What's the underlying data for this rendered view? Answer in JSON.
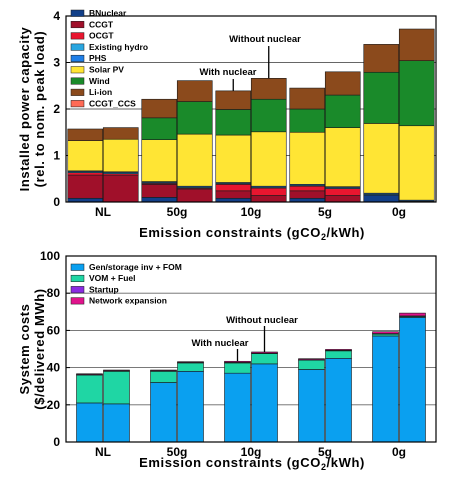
{
  "chart_data": [
    {
      "type": "bar",
      "stacked": true,
      "title": "",
      "xlabel": "Emission constraints (gCO2/kWh)",
      "xlabel_parts": [
        "Emission constraints (gCO",
        "2",
        "/kWh)"
      ],
      "ylabel_lines": [
        "Installed power capacity",
        "(rel. to nom. peak load)"
      ],
      "ylim": [
        0,
        4
      ],
      "yticks": [
        0,
        1,
        2,
        3,
        4
      ],
      "grid": "horizontal",
      "legend_position": "top-left",
      "categories": [
        "NL",
        "50g",
        "10g",
        "5g",
        "0g"
      ],
      "bar_variants": [
        "With nuclear",
        "Without nuclear"
      ],
      "annotations": [
        {
          "text": "With nuclear",
          "category": "10g",
          "variant": "With nuclear"
        },
        {
          "text": "Without nuclear",
          "category": "10g",
          "variant": "Without nuclear"
        }
      ],
      "series": [
        {
          "name": "BNuclear",
          "color": "#123f88",
          "values": [
            [
              0.08,
              0.0
            ],
            [
              0.1,
              0.0
            ],
            [
              0.08,
              0.0
            ],
            [
              0.08,
              0.0
            ],
            [
              0.15,
              0.0
            ]
          ]
        },
        {
          "name": "CCGT",
          "color": "#a0102a",
          "values": [
            [
              0.5,
              0.58
            ],
            [
              0.28,
              0.28
            ],
            [
              0.16,
              0.14
            ],
            [
              0.16,
              0.14
            ],
            [
              0.0,
              0.0
            ]
          ]
        },
        {
          "name": "OCGT",
          "color": "#e8162f",
          "values": [
            [
              0.05,
              0.03
            ],
            [
              0.02,
              0.02
            ],
            [
              0.14,
              0.16
            ],
            [
              0.1,
              0.15
            ],
            [
              0.0,
              0.0
            ]
          ]
        },
        {
          "name": "Existing hydro",
          "color": "#2aa6e0",
          "values": [
            [
              0.02,
              0.02
            ],
            [
              0.02,
              0.02
            ],
            [
              0.02,
              0.02
            ],
            [
              0.02,
              0.02
            ],
            [
              0.02,
              0.02
            ]
          ]
        },
        {
          "name": "PHS",
          "color": "#1f7fe8",
          "values": [
            [
              0.02,
              0.02
            ],
            [
              0.02,
              0.02
            ],
            [
              0.02,
              0.02
            ],
            [
              0.02,
              0.02
            ],
            [
              0.02,
              0.02
            ]
          ]
        },
        {
          "name": "Solar PV",
          "color": "#ffe534",
          "values": [
            [
              0.65,
              0.7
            ],
            [
              0.9,
              1.12
            ],
            [
              1.02,
              1.17
            ],
            [
              1.12,
              1.27
            ],
            [
              1.5,
              1.6
            ]
          ]
        },
        {
          "name": "Wind",
          "color": "#1a8a2a",
          "values": [
            [
              0.0,
              0.0
            ],
            [
              0.47,
              0.7
            ],
            [
              0.55,
              0.7
            ],
            [
              0.5,
              0.7
            ],
            [
              1.1,
              1.4
            ]
          ]
        },
        {
          "name": "Li-ion",
          "color": "#8b4a1c",
          "values": [
            [
              0.25,
              0.25
            ],
            [
              0.4,
              0.45
            ],
            [
              0.4,
              0.45
            ],
            [
              0.45,
              0.5
            ],
            [
              0.6,
              0.68
            ]
          ]
        },
        {
          "name": "CCGT_CCS",
          "color": "#ff6a55",
          "values": [
            [
              0.0,
              0.0
            ],
            [
              0.0,
              0.0
            ],
            [
              0.0,
              0.0
            ],
            [
              0.0,
              0.0
            ],
            [
              0.0,
              0.0
            ]
          ]
        }
      ]
    },
    {
      "type": "bar",
      "stacked": true,
      "title": "",
      "xlabel": "Emission constraints (gCO2/kWh)",
      "xlabel_parts": [
        "Emission constraints (gCO",
        "2",
        "/kWh)"
      ],
      "ylabel_lines": [
        "System costs",
        "($/delivered MWh)"
      ],
      "ylim": [
        0,
        100
      ],
      "yticks": [
        0,
        20,
        40,
        60,
        80,
        100
      ],
      "grid": "horizontal",
      "legend_position": "top-left",
      "categories": [
        "NL",
        "50g",
        "10g",
        "5g",
        "0g"
      ],
      "bar_variants": [
        "With nuclear",
        "Without nuclear"
      ],
      "annotations": [
        {
          "text": "With nuclear",
          "category": "10g",
          "variant": "With nuclear"
        },
        {
          "text": "Without nuclear",
          "category": "10g",
          "variant": "Without nuclear"
        }
      ],
      "series": [
        {
          "name": "Gen/storage inv + FOM",
          "color": "#0aa0f0",
          "values": [
            [
              21,
              20.5
            ],
            [
              32,
              38
            ],
            [
              37,
              42
            ],
            [
              39,
              45
            ],
            [
              57,
              67
            ]
          ]
        },
        {
          "name": "VOM + Fuel",
          "color": "#1fd6a4",
          "values": [
            [
              15,
              17.5
            ],
            [
              6,
              4.5
            ],
            [
              5.5,
              5.5
            ],
            [
              5,
              4
            ],
            [
              1,
              0.5
            ]
          ]
        },
        {
          "name": "Startup",
          "color": "#8a2be2",
          "values": [
            [
              0.3,
              0.3
            ],
            [
              0.3,
              0.3
            ],
            [
              0.3,
              0.3
            ],
            [
              0.3,
              0.3
            ],
            [
              0.3,
              0.3
            ]
          ]
        },
        {
          "name": "Network expansion",
          "color": "#e0138c",
          "values": [
            [
              0.4,
              0.4
            ],
            [
              0.4,
              0.4
            ],
            [
              0.6,
              0.6
            ],
            [
              0.5,
              0.5
            ],
            [
              1.0,
              1.5
            ]
          ]
        }
      ]
    }
  ]
}
